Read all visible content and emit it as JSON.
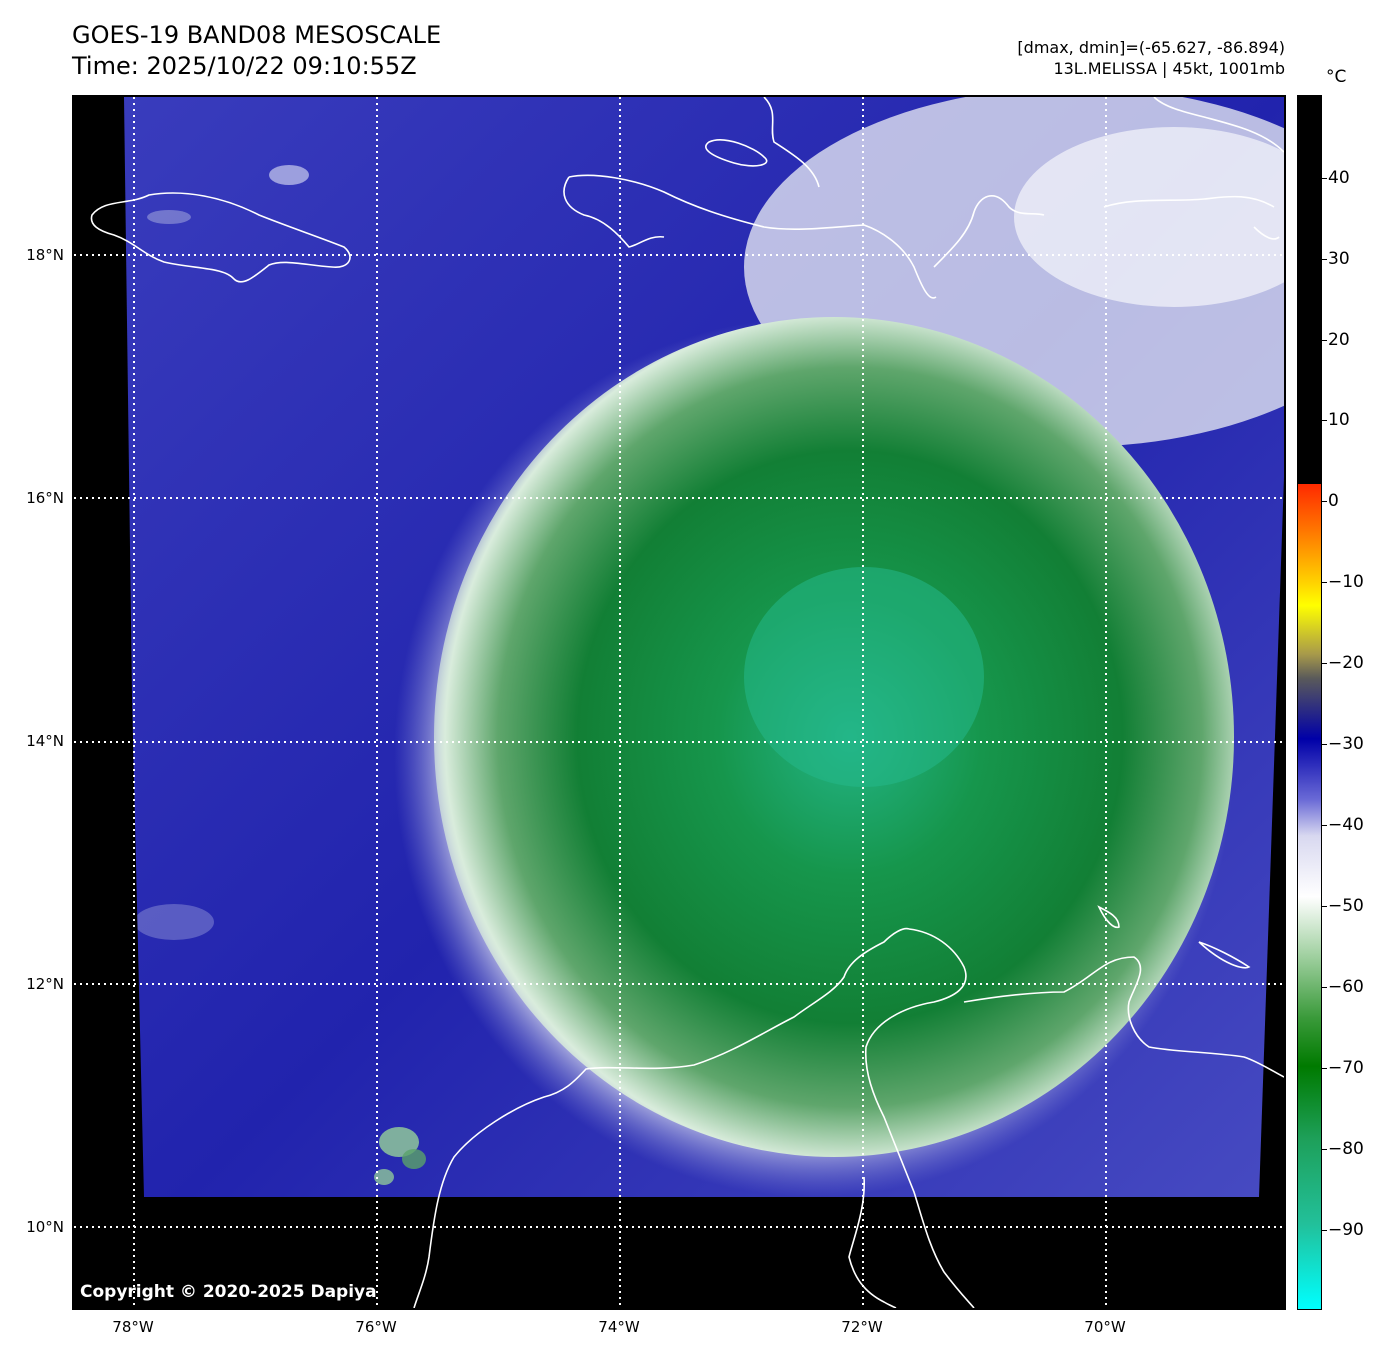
{
  "header": {
    "title_line1": "GOES-19 BAND08 MESOSCALE",
    "title_line2": "Time: 2025/10/22 09:10:55Z",
    "range_text": "[dmax, dmin]=(-65.627, -86.894)",
    "storm_text": "13L.MELISSA | 45kt, 1001mb"
  },
  "map": {
    "copyright": "Copyright © 2020-2025 Dapiya",
    "lon_ticks": [
      "78°W",
      "76°W",
      "74°W",
      "72°W",
      "70°W"
    ],
    "lat_ticks": [
      "18°N",
      "16°N",
      "14°N",
      "12°N",
      "10°N"
    ],
    "colors": {
      "ocean_clear": "#2e30b8",
      "cloud_edge": "#e9edf2",
      "cold_cloud": "#148a3c",
      "coldest_core": "#23b486",
      "coastline": "#ffffff",
      "no_data": "#000000"
    }
  },
  "colorbar": {
    "unit": "°C",
    "tick_labels": [
      "40",
      "30",
      "20",
      "10",
      "0",
      "−10",
      "−20",
      "−30",
      "−40",
      "−50",
      "−60",
      "−70",
      "−80",
      "−90"
    ]
  }
}
